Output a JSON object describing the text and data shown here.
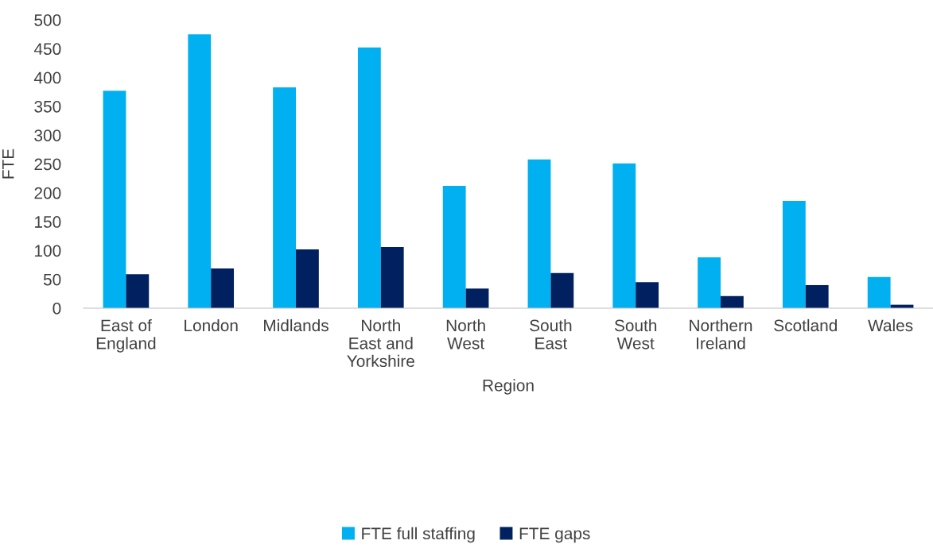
{
  "chart_data": {
    "type": "bar",
    "xlabel": "Region",
    "ylabel": "FTE",
    "categories": [
      "East of England",
      "London",
      "Midlands",
      "North East and Yorkshire",
      "North West",
      "South East",
      "South West",
      "Northern Ireland",
      "Scotland",
      "Wales"
    ],
    "series": [
      {
        "name": "FTE full staffing",
        "color": "#00b0f0",
        "values": [
          377,
          475,
          383,
          452,
          212,
          258,
          251,
          88,
          186,
          54
        ]
      },
      {
        "name": "FTE gaps",
        "color": "#002060",
        "values": [
          59,
          69,
          102,
          106,
          34,
          61,
          45,
          21,
          40,
          6
        ]
      }
    ],
    "ylim": [
      0,
      500
    ],
    "yticks": [
      0,
      50,
      100,
      150,
      200,
      250,
      300,
      350,
      400,
      450,
      500
    ],
    "grid": false,
    "legend": "bottom"
  }
}
